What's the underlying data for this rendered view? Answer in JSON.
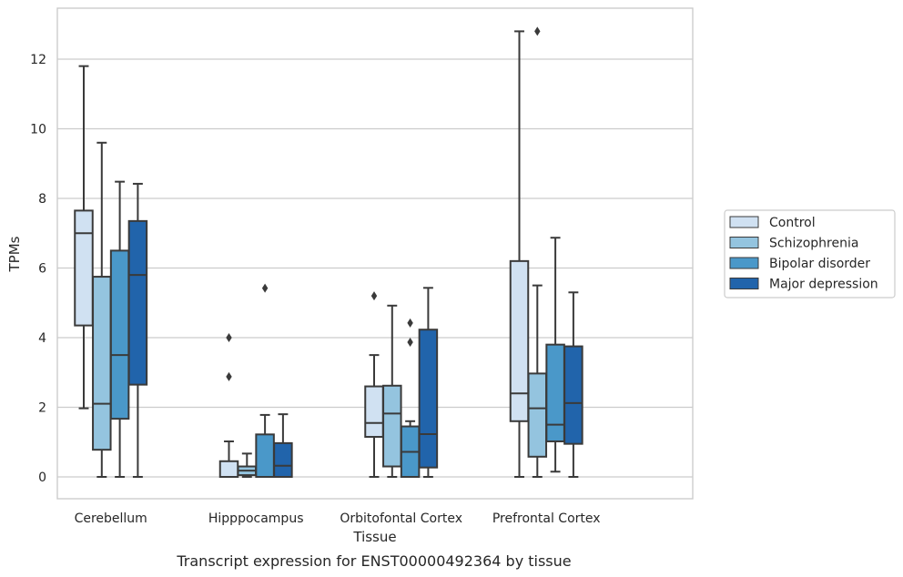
{
  "chart_data": {
    "type": "boxplot",
    "title": "",
    "caption": "Transcript expression for ENST00000492364 by tissue",
    "xlabel": "Tissue",
    "ylabel": "TPMs",
    "ylim": [
      -0.62,
      13.5
    ],
    "yticks": [
      0,
      2,
      4,
      6,
      8,
      10,
      12
    ],
    "grid": "horizontal",
    "legend_position": "right",
    "categories": [
      "Cerebellum",
      "Hipppocampus",
      "Orbitofontal Cortex",
      "Prefrontal Cortex"
    ],
    "series": [
      {
        "name": "Control",
        "color": "#d0e1f2",
        "boxes": [
          {
            "whislo": 1.97,
            "q1": 4.35,
            "med": 7.0,
            "q3": 7.65,
            "whishi": 11.8,
            "fliers": []
          },
          {
            "whislo": 0.0,
            "q1": 0.0,
            "med": 0.0,
            "q3": 0.45,
            "whishi": 1.02,
            "fliers": [
              2.88,
              4.0
            ]
          },
          {
            "whislo": 0.0,
            "q1": 1.15,
            "med": 1.55,
            "q3": 2.6,
            "whishi": 3.5,
            "fliers": [
              5.2
            ]
          },
          {
            "whislo": 0.0,
            "q1": 1.6,
            "med": 2.4,
            "q3": 6.2,
            "whishi": 12.8,
            "fliers": []
          }
        ]
      },
      {
        "name": "Schizophrenia",
        "color": "#94c4df",
        "boxes": [
          {
            "whislo": 0.0,
            "q1": 0.78,
            "med": 2.1,
            "q3": 5.75,
            "whishi": 9.6,
            "fliers": []
          },
          {
            "whislo": 0.0,
            "q1": 0.05,
            "med": 0.18,
            "q3": 0.3,
            "whishi": 0.67,
            "fliers": []
          },
          {
            "whislo": 0.0,
            "q1": 0.3,
            "med": 1.82,
            "q3": 2.62,
            "whishi": 4.92,
            "fliers": []
          },
          {
            "whislo": 0.0,
            "q1": 0.58,
            "med": 1.97,
            "q3": 2.97,
            "whishi": 5.5,
            "fliers": [
              12.8
            ]
          }
        ]
      },
      {
        "name": "Bipolar disorder",
        "color": "#4a98c9",
        "boxes": [
          {
            "whislo": 0.0,
            "q1": 1.67,
            "med": 3.5,
            "q3": 6.5,
            "whishi": 8.48,
            "fliers": []
          },
          {
            "whislo": 0.0,
            "q1": 0.0,
            "med": 0.0,
            "q3": 1.22,
            "whishi": 1.78,
            "fliers": [
              5.42
            ]
          },
          {
            "whislo": 0.0,
            "q1": 0.0,
            "med": 0.72,
            "q3": 1.45,
            "whishi": 1.6,
            "fliers": [
              3.87,
              4.42
            ]
          },
          {
            "whislo": 0.15,
            "q1": 1.02,
            "med": 1.5,
            "q3": 3.8,
            "whishi": 6.87,
            "fliers": []
          }
        ]
      },
      {
        "name": "Major depression",
        "color": "#2164ab",
        "boxes": [
          {
            "whislo": 0.0,
            "q1": 2.65,
            "med": 5.8,
            "q3": 7.35,
            "whishi": 8.42,
            "fliers": []
          },
          {
            "whislo": 0.0,
            "q1": 0.0,
            "med": 0.32,
            "q3": 0.97,
            "whishi": 1.8,
            "fliers": []
          },
          {
            "whislo": 0.0,
            "q1": 0.27,
            "med": 1.23,
            "q3": 4.23,
            "whishi": 5.43,
            "fliers": []
          },
          {
            "whislo": 0.0,
            "q1": 0.95,
            "med": 2.12,
            "q3": 3.75,
            "whishi": 5.3,
            "fliers": []
          }
        ]
      }
    ]
  }
}
